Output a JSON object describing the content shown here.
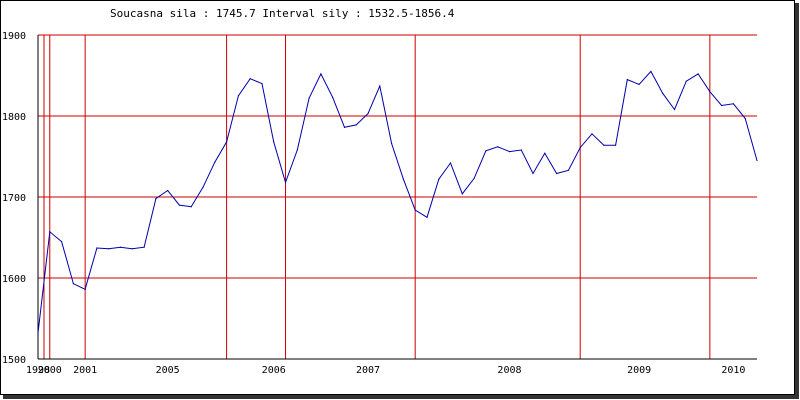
{
  "header": {
    "text": "Soucasna sila : 1745.7  Interval sily : 1532.5-1856.4"
  },
  "colors": {
    "line": "#0000aa",
    "grid": "#cc0000",
    "axis": "#000000",
    "frame_shadow": "#333333"
  },
  "chart_data": {
    "type": "line",
    "title": "Soucasna sila : 1745.7  Interval sily : 1532.5-1856.4",
    "xlabel": "",
    "ylabel": "",
    "ylim": [
      1500,
      1900
    ],
    "grid": true,
    "y_ticks": [
      "1500",
      "1600",
      "1700",
      "1800",
      "1900"
    ],
    "x_tick_labels": [
      "1998",
      "2000",
      "2001",
      "2005",
      "2006",
      "2007",
      "2008",
      "2009",
      "2010"
    ],
    "x_tick_index": [
      0,
      1,
      4,
      11,
      20,
      28,
      40,
      51,
      59
    ],
    "vertical_grid_index": [
      0,
      1,
      4,
      16,
      21,
      32,
      46,
      57
    ],
    "series": [
      {
        "values": [
          1532,
          1657,
          1645,
          1593,
          1586,
          1637,
          1636,
          1638,
          1636,
          1638,
          1698,
          1708,
          1690,
          1688,
          1712,
          1743,
          1768,
          1825,
          1846,
          1840,
          1768,
          1718,
          1758,
          1822,
          1852,
          1823,
          1786,
          1789,
          1803,
          1837,
          1766,
          1722,
          1684,
          1675,
          1722,
          1742,
          1704,
          1723,
          1757,
          1762,
          1756,
          1758,
          1729,
          1754,
          1729,
          1733,
          1761,
          1778,
          1764,
          1764,
          1845,
          1839,
          1855,
          1828,
          1808,
          1843,
          1852,
          1830,
          1813,
          1815,
          1797,
          1745
        ]
      }
    ]
  }
}
